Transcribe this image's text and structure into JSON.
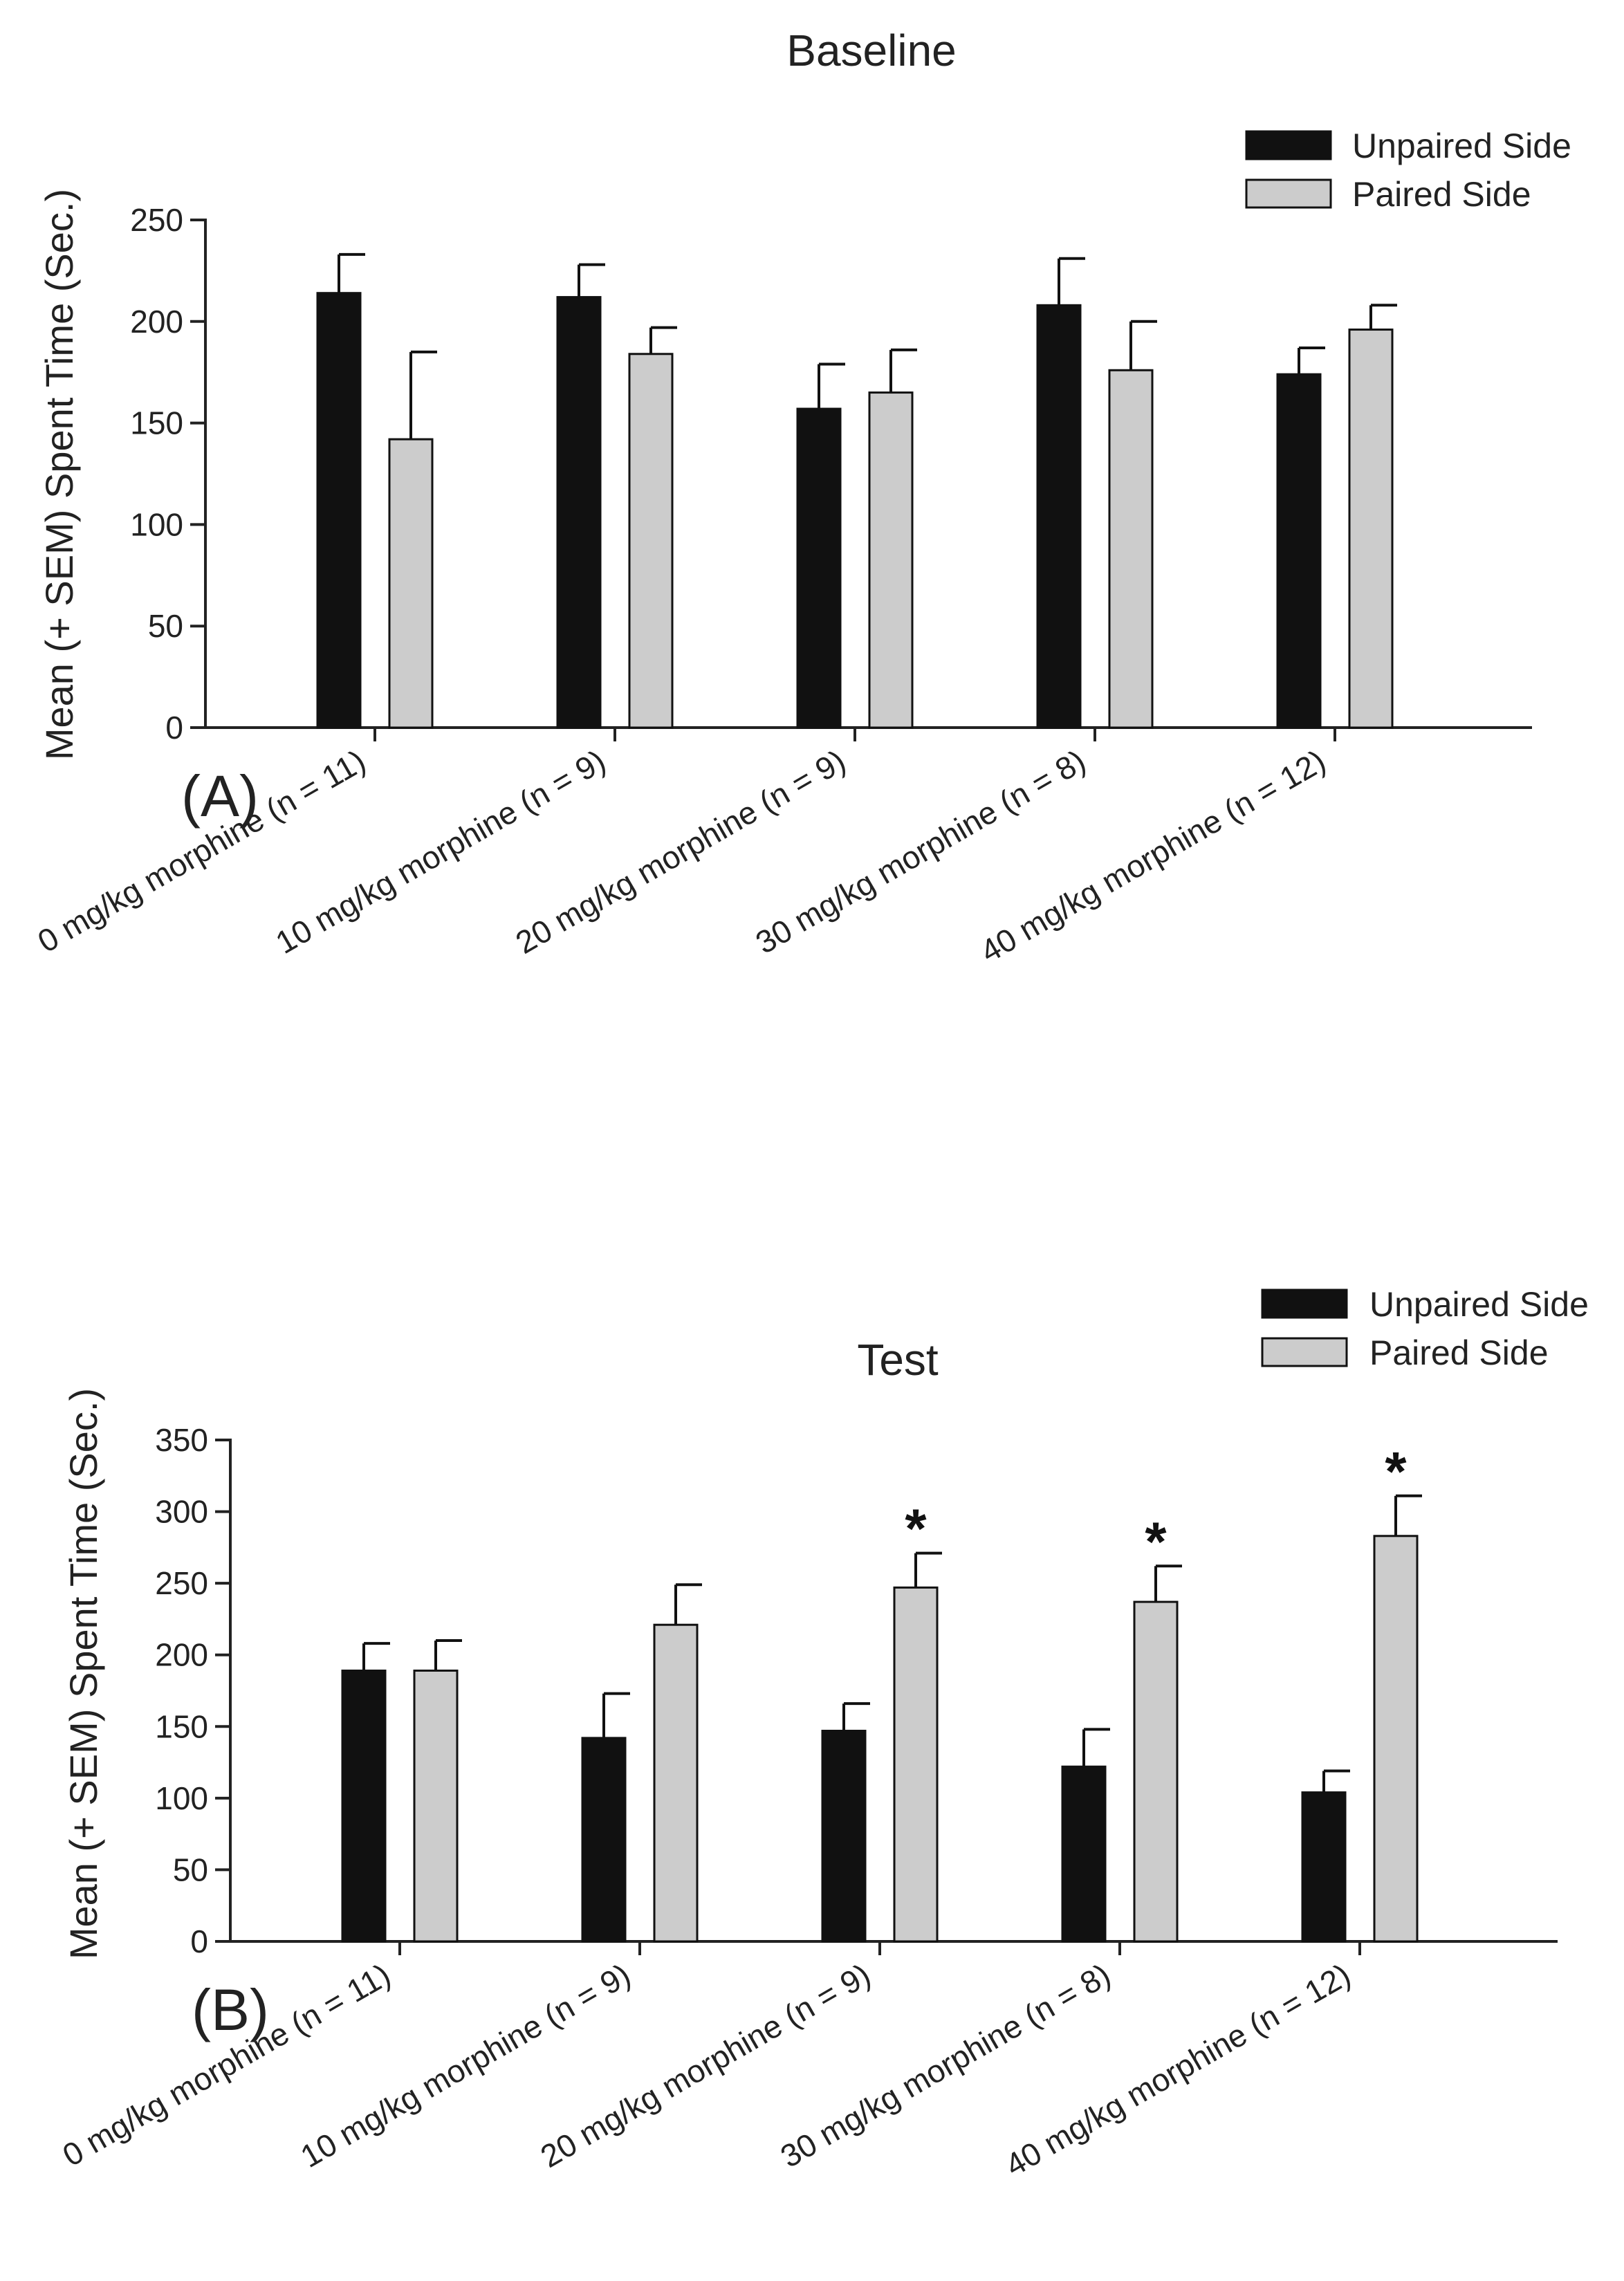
{
  "colors": {
    "unpaired": "#111111",
    "paired": "#cccccc",
    "axis": "#222222"
  },
  "legend": {
    "unpaired_label": "Unpaired Side",
    "paired_label": "Paired Side"
  },
  "chart_data": [
    {
      "type": "bar",
      "panel": "(A)",
      "title": "Baseline",
      "ylabel": "Mean (+ SEM) Spent Time (Sec.)",
      "ylim": [
        0,
        250
      ],
      "yticks": [
        0,
        50,
        100,
        150,
        200,
        250
      ],
      "categories": [
        "0 mg/kg morphine (n = 11)",
        "10 mg/kg morphine (n = 9)",
        "20 mg/kg morphine (n = 9)",
        "30 mg/kg morphine (n = 8)",
        "40 mg/kg morphine (n = 12)"
      ],
      "series": [
        {
          "name": "Unpaired Side",
          "values": [
            214,
            212,
            157,
            208,
            174
          ],
          "sem": [
            19,
            16,
            22,
            23,
            13
          ]
        },
        {
          "name": "Paired Side",
          "values": [
            142,
            184,
            165,
            176,
            196
          ],
          "sem": [
            43,
            13,
            21,
            24,
            12
          ]
        }
      ],
      "significance": [
        "",
        "",
        "",
        "",
        ""
      ]
    },
    {
      "type": "bar",
      "panel": "(B)",
      "title": "Test",
      "ylabel": "Mean (+ SEM) Spent Time (Sec.)",
      "ylim": [
        0,
        350
      ],
      "yticks": [
        0,
        50,
        100,
        150,
        200,
        250,
        300,
        350
      ],
      "categories": [
        "0 mg/kg morphine (n = 11)",
        "10 mg/kg morphine (n = 9)",
        "20 mg/kg morphine (n = 9)",
        "30 mg/kg morphine (n = 8)",
        "40 mg/kg morphine (n = 12)"
      ],
      "series": [
        {
          "name": "Unpaired Side",
          "values": [
            189,
            142,
            147,
            122,
            104
          ],
          "sem": [
            19,
            31,
            19,
            26,
            15
          ]
        },
        {
          "name": "Paired Side",
          "values": [
            189,
            221,
            247,
            237,
            283
          ],
          "sem": [
            21,
            28,
            24,
            25,
            28
          ]
        }
      ],
      "significance": [
        "",
        "",
        "*",
        "*",
        "*"
      ]
    }
  ]
}
